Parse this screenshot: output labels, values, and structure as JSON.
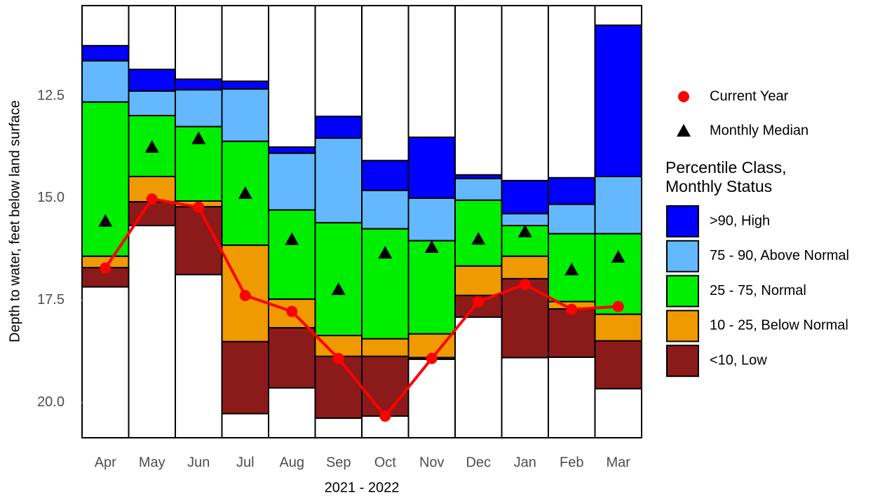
{
  "chart_data": {
    "type": "floating-bar",
    "x_label": "2021 - 2022",
    "y_label": "Depth to water, feet below land surface",
    "categories": [
      "Apr",
      "May",
      "Jun",
      "Jul",
      "Aug",
      "Sep",
      "Oct",
      "Nov",
      "Dec",
      "Jan",
      "Feb",
      "Mar"
    ],
    "ylim": [
      10.29,
      20.86
    ],
    "y_inverted": true,
    "yticks": [
      12.5,
      {
        "value": 15,
        "label": "15.0"
      },
      17.5,
      {
        "value": 20,
        "label": "20.0"
      }
    ],
    "grid": false,
    "legend_title": [
      "Percentile Class,",
      "Monthly Status"
    ],
    "classes": [
      {
        "name": ">90, High",
        "color": "#0000ff",
        "values": [
          [
            11.27,
            11.64
          ],
          [
            11.85,
            12.38
          ],
          [
            12.09,
            12.35
          ],
          [
            12.14,
            12.33
          ],
          [
            13.75,
            13.9
          ],
          [
            13.0,
            13.53
          ],
          [
            14.08,
            14.81
          ],
          [
            13.51,
            15.0
          ],
          [
            14.43,
            14.52
          ],
          [
            14.57,
            15.38
          ],
          [
            14.5,
            15.15
          ],
          [
            10.77,
            14.47
          ]
        ]
      },
      {
        "name": "75 - 90, Above Normal",
        "color": "#63b8ff",
        "values": [
          [
            11.64,
            12.65
          ],
          [
            12.38,
            12.98
          ],
          [
            12.35,
            13.25
          ],
          [
            12.33,
            13.61
          ],
          [
            13.9,
            15.29
          ],
          [
            13.53,
            15.6
          ],
          [
            14.81,
            15.75
          ],
          [
            15.0,
            16.04
          ],
          [
            14.52,
            15.05
          ],
          [
            15.38,
            15.67
          ],
          [
            15.15,
            15.87
          ],
          [
            14.47,
            15.87
          ]
        ]
      },
      {
        "name": "25 - 75, Normal",
        "color": "#00ee00",
        "values": [
          [
            12.65,
            16.42
          ],
          [
            12.98,
            14.47
          ],
          [
            13.25,
            15.07
          ],
          [
            13.61,
            16.15
          ],
          [
            15.29,
            17.47
          ],
          [
            15.6,
            18.36
          ],
          [
            15.75,
            18.44
          ],
          [
            16.04,
            18.32
          ],
          [
            15.05,
            16.66
          ],
          [
            15.67,
            16.42
          ],
          [
            15.87,
            17.53
          ],
          [
            15.87,
            17.84
          ]
        ]
      },
      {
        "name": "10 - 25, Below Normal",
        "color": "#ee9a00",
        "values": [
          [
            16.42,
            16.7
          ],
          [
            14.47,
            15.09
          ],
          [
            15.07,
            15.21
          ],
          [
            16.15,
            18.51
          ],
          [
            17.47,
            18.17
          ],
          [
            18.36,
            18.87
          ],
          [
            18.44,
            18.87
          ],
          [
            18.32,
            18.9
          ],
          [
            16.66,
            17.38
          ],
          [
            16.42,
            16.97
          ],
          [
            17.53,
            17.71
          ],
          [
            17.84,
            18.49
          ]
        ]
      },
      {
        "name": "<10, Low",
        "color": "#8b1a1a",
        "values": [
          [
            16.7,
            17.17
          ],
          [
            15.09,
            15.67
          ],
          [
            15.21,
            16.87
          ],
          [
            18.51,
            20.27
          ],
          [
            18.17,
            19.64
          ],
          [
            18.87,
            20.38
          ],
          [
            18.87,
            20.33
          ],
          [
            18.9,
            18.94
          ],
          [
            17.38,
            17.91
          ],
          [
            16.97,
            18.9
          ],
          [
            17.71,
            18.89
          ],
          [
            18.49,
            19.66
          ]
        ]
      }
    ],
    "series": [
      {
        "name": "Current Year",
        "color": "#ff0000",
        "marker": "circle",
        "values": [
          16.71,
          15.02,
          15.22,
          17.38,
          17.77,
          18.92,
          20.33,
          18.92,
          17.53,
          17.11,
          17.72,
          17.65
        ]
      },
      {
        "name": "Monthly Median",
        "color": "#000000",
        "marker": "triangle",
        "values": [
          15.56,
          13.75,
          13.54,
          14.88,
          16.01,
          17.23,
          16.34,
          16.2,
          16.0,
          15.82,
          16.75,
          16.44
        ]
      }
    ]
  }
}
